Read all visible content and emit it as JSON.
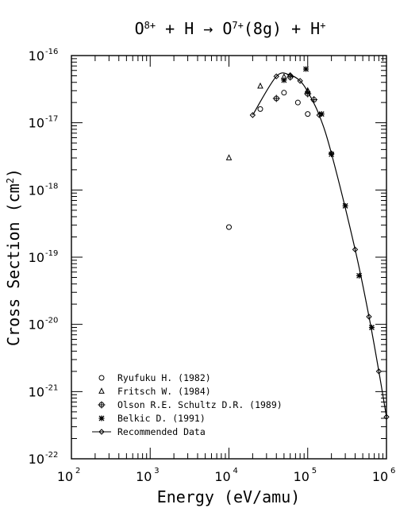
{
  "chart_data": {
    "type": "scatter",
    "title": {
      "parts": [
        {
          "t": "O",
          "sup": "8+"
        },
        {
          "t": " + H → O",
          "sup": "7+"
        },
        {
          "t": "(8g) + H",
          "sup": "+"
        }
      ]
    },
    "xlabel": "Energy (eV/amu)",
    "ylabel": {
      "pre": "Cross Section (cm",
      "sup": "2",
      "post": ")"
    },
    "xscale": "log",
    "yscale": "log",
    "xlim": [
      100,
      1000000
    ],
    "ylim": [
      1e-22,
      1e-16
    ],
    "x_ticks": [
      {
        "base": "10",
        "exp": "2"
      },
      {
        "base": "10",
        "exp": "3"
      },
      {
        "base": "10",
        "exp": "4"
      },
      {
        "base": "10",
        "exp": "5"
      },
      {
        "base": "10",
        "exp": "6"
      }
    ],
    "y_ticks": [
      {
        "base": "10",
        "exp": "-22"
      },
      {
        "base": "10",
        "exp": "-21"
      },
      {
        "base": "10",
        "exp": "-20"
      },
      {
        "base": "10",
        "exp": "-19"
      },
      {
        "base": "10",
        "exp": "-18"
      },
      {
        "base": "10",
        "exp": "-17"
      },
      {
        "base": "10",
        "exp": "-16"
      }
    ],
    "grid": false,
    "legend_position": "bottom-left",
    "series": [
      {
        "name": "Ryufuku H. (1982)",
        "marker": "circle",
        "points": [
          [
            10000,
            2.8e-19
          ],
          [
            25000,
            1.6e-17
          ],
          [
            50000,
            2.8e-17
          ],
          [
            75000,
            2e-17
          ],
          [
            100000,
            1.35e-17
          ]
        ]
      },
      {
        "name": "Fritsch W. (1984)",
        "marker": "triangle",
        "points": [
          [
            10000,
            3e-18
          ],
          [
            25000,
            3.5e-17
          ],
          [
            50000,
            4.8e-17
          ],
          [
            100000,
            3e-17
          ]
        ]
      },
      {
        "name": "Olson R.E. Schultz D.R. (1989)",
        "marker": "circle-plus",
        "points": [
          [
            40000,
            2.3e-17
          ],
          [
            60000,
            4.8e-17
          ],
          [
            100000,
            2.7e-17
          ],
          [
            120000,
            2.2e-17
          ]
        ]
      },
      {
        "name": "Belkic D. (1991)",
        "marker": "star",
        "points": [
          [
            50000,
            4.3e-17
          ],
          [
            95000,
            6.3e-17
          ],
          [
            150000,
            1.35e-17
          ],
          [
            200000,
            3.4e-18
          ],
          [
            300000,
            5.8e-19
          ],
          [
            450000,
            5.3e-20
          ],
          [
            650000,
            9e-21
          ]
        ]
      },
      {
        "name": "Recommended Data",
        "marker": "diamond",
        "line": true,
        "points": [
          [
            20000,
            1.3e-17
          ],
          [
            40000,
            4.9e-17
          ],
          [
            60000,
            5.1e-17
          ],
          [
            80000,
            4.2e-17
          ],
          [
            100000,
            2.9e-17
          ],
          [
            140000,
            1.3e-17
          ],
          [
            200000,
            3.5e-18
          ],
          [
            400000,
            1.3e-19
          ],
          [
            600000,
            1.3e-20
          ],
          [
            800000,
            2e-21
          ],
          [
            1000000,
            4.2e-22
          ]
        ]
      }
    ]
  }
}
